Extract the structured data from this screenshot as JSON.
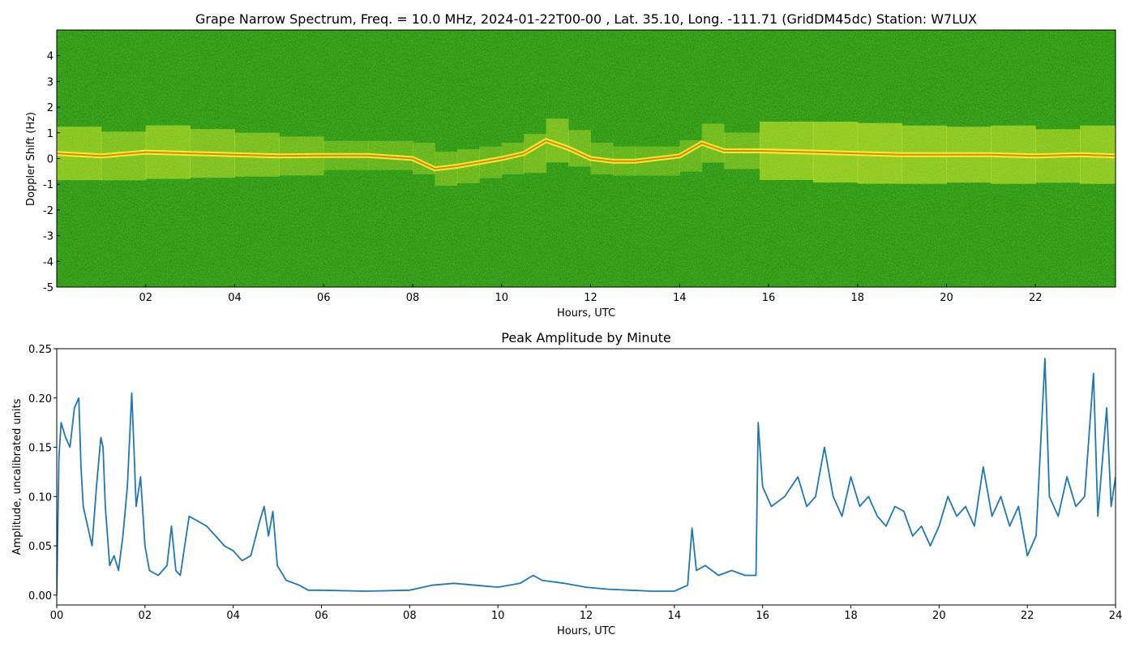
{
  "chart_data": [
    {
      "type": "heatmap",
      "title": "Grape Narrow Spectrum, Freq. = 10.0 MHz, 2024-01-22T00-00 , Lat.  35.10, Long. -111.71 (GridDM45dc) Station: W7LUX",
      "xlabel": "Hours, UTC",
      "ylabel": "Doppler Shift (Hz)",
      "xlim": [
        0,
        23.8
      ],
      "ylim": [
        -5,
        5
      ],
      "x_ticks": [
        {
          "value": 2,
          "label": "02"
        },
        {
          "value": 4,
          "label": "04"
        },
        {
          "value": 6,
          "label": "06"
        },
        {
          "value": 8,
          "label": "08"
        },
        {
          "value": 10,
          "label": "10"
        },
        {
          "value": 12,
          "label": "12"
        },
        {
          "value": 14,
          "label": "14"
        },
        {
          "value": 16,
          "label": "16"
        },
        {
          "value": 18,
          "label": "18"
        },
        {
          "value": 20,
          "label": "20"
        },
        {
          "value": 22,
          "label": "22"
        }
      ],
      "y_ticks": [
        {
          "value": 4,
          "label": "4"
        },
        {
          "value": 3,
          "label": "3"
        },
        {
          "value": 2,
          "label": "2"
        },
        {
          "value": 1,
          "label": "1"
        },
        {
          "value": 0,
          "label": "0"
        },
        {
          "value": -1,
          "label": "-1"
        },
        {
          "value": -2,
          "label": "-2"
        },
        {
          "value": -3,
          "label": "-3"
        },
        {
          "value": -4,
          "label": "-4"
        },
        {
          "value": -5,
          "label": "-5"
        }
      ],
      "colors": {
        "background": "#0b8a00",
        "mid": "#ffff33",
        "high": "#ff2a00"
      },
      "traces": [
        {
          "name_hidden": true,
          "x": [
            0.0,
            1.0,
            2.0,
            3.0,
            4.0,
            5.0,
            6.0,
            7.0,
            8.0,
            8.5,
            9.0,
            9.5,
            10.0,
            10.5,
            11.0,
            11.5,
            12.0,
            12.5,
            13.0,
            14.0,
            14.5,
            15.0,
            15.8,
            17.0,
            18.0,
            19.0,
            20.0,
            21.0,
            22.0,
            23.0,
            23.8
          ],
          "y": [
            0.2,
            0.1,
            0.25,
            0.2,
            0.15,
            0.1,
            0.12,
            0.12,
            0.0,
            -0.4,
            -0.3,
            -0.15,
            0.0,
            0.2,
            0.7,
            0.4,
            0.0,
            -0.1,
            -0.1,
            0.1,
            0.6,
            0.3,
            0.3,
            0.25,
            0.2,
            0.15,
            0.15,
            0.15,
            0.1,
            0.15,
            0.1
          ],
          "intensity": [
            0.8,
            0.7,
            0.8,
            0.7,
            0.6,
            0.5,
            0.3,
            0.3,
            0.35,
            0.4,
            0.4,
            0.35,
            0.35,
            0.5,
            0.6,
            0.45,
            0.35,
            0.3,
            0.3,
            0.35,
            0.5,
            0.45,
            0.9,
            0.95,
            0.95,
            0.9,
            0.85,
            0.9,
            0.8,
            0.9,
            0.85
          ]
        }
      ]
    },
    {
      "type": "line",
      "title": "Peak Amplitude by Minute",
      "xlabel": "Hours, UTC",
      "ylabel": "Amplitude, uncalibrated units",
      "xlim": [
        0,
        24
      ],
      "ylim": [
        -0.01,
        0.25
      ],
      "x_ticks": [
        {
          "value": 0,
          "label": "00"
        },
        {
          "value": 2,
          "label": "02"
        },
        {
          "value": 4,
          "label": "04"
        },
        {
          "value": 6,
          "label": "06"
        },
        {
          "value": 8,
          "label": "08"
        },
        {
          "value": 10,
          "label": "10"
        },
        {
          "value": 12,
          "label": "12"
        },
        {
          "value": 14,
          "label": "14"
        },
        {
          "value": 16,
          "label": "16"
        },
        {
          "value": 18,
          "label": "18"
        },
        {
          "value": 20,
          "label": "20"
        },
        {
          "value": 22,
          "label": "22"
        },
        {
          "value": 24,
          "label": "24"
        }
      ],
      "y_ticks": [
        {
          "value": 0.0,
          "label": "0.00"
        },
        {
          "value": 0.05,
          "label": "0.05"
        },
        {
          "value": 0.1,
          "label": "0.10"
        },
        {
          "value": 0.15,
          "label": "0.15"
        },
        {
          "value": 0.2,
          "label": "0.20"
        },
        {
          "value": 0.25,
          "label": "0.25"
        }
      ],
      "color": "#1f77b4",
      "x": [
        0.0,
        0.05,
        0.1,
        0.2,
        0.3,
        0.4,
        0.5,
        0.55,
        0.6,
        0.7,
        0.8,
        0.9,
        1.0,
        1.05,
        1.1,
        1.2,
        1.3,
        1.4,
        1.5,
        1.6,
        1.7,
        1.75,
        1.8,
        1.9,
        2.0,
        2.1,
        2.3,
        2.5,
        2.6,
        2.7,
        2.8,
        3.0,
        3.2,
        3.4,
        3.6,
        3.8,
        4.0,
        4.2,
        4.4,
        4.6,
        4.7,
        4.8,
        4.9,
        5.0,
        5.2,
        5.5,
        5.7,
        6.0,
        7.0,
        8.0,
        8.5,
        9.0,
        9.5,
        10.0,
        10.5,
        10.8,
        11.0,
        11.5,
        12.0,
        12.5,
        13.0,
        13.5,
        14.0,
        14.3,
        14.4,
        14.5,
        14.7,
        15.0,
        15.3,
        15.6,
        15.85,
        15.9,
        16.0,
        16.2,
        16.5,
        16.8,
        17.0,
        17.2,
        17.4,
        17.6,
        17.8,
        18.0,
        18.2,
        18.4,
        18.6,
        18.8,
        19.0,
        19.2,
        19.4,
        19.6,
        19.8,
        20.0,
        20.2,
        20.4,
        20.6,
        20.8,
        21.0,
        21.2,
        21.4,
        21.6,
        21.8,
        22.0,
        22.2,
        22.4,
        22.5,
        22.7,
        22.9,
        23.1,
        23.3,
        23.5,
        23.6,
        23.8,
        23.9,
        24.0
      ],
      "y": [
        0.0,
        0.14,
        0.175,
        0.16,
        0.15,
        0.19,
        0.2,
        0.13,
        0.09,
        0.07,
        0.05,
        0.11,
        0.16,
        0.15,
        0.09,
        0.03,
        0.04,
        0.025,
        0.06,
        0.11,
        0.205,
        0.15,
        0.09,
        0.12,
        0.05,
        0.025,
        0.02,
        0.03,
        0.07,
        0.025,
        0.02,
        0.08,
        0.075,
        0.07,
        0.06,
        0.05,
        0.045,
        0.035,
        0.04,
        0.075,
        0.09,
        0.06,
        0.085,
        0.03,
        0.015,
        0.01,
        0.005,
        0.005,
        0.004,
        0.005,
        0.01,
        0.012,
        0.01,
        0.008,
        0.012,
        0.02,
        0.015,
        0.012,
        0.008,
        0.006,
        0.005,
        0.004,
        0.004,
        0.01,
        0.068,
        0.025,
        0.03,
        0.02,
        0.025,
        0.02,
        0.02,
        0.175,
        0.11,
        0.09,
        0.1,
        0.12,
        0.09,
        0.1,
        0.15,
        0.1,
        0.08,
        0.12,
        0.09,
        0.1,
        0.08,
        0.07,
        0.09,
        0.085,
        0.06,
        0.07,
        0.05,
        0.07,
        0.1,
        0.08,
        0.09,
        0.07,
        0.13,
        0.08,
        0.1,
        0.07,
        0.09,
        0.04,
        0.06,
        0.24,
        0.1,
        0.08,
        0.12,
        0.09,
        0.1,
        0.225,
        0.08,
        0.19,
        0.09,
        0.12
      ]
    }
  ]
}
